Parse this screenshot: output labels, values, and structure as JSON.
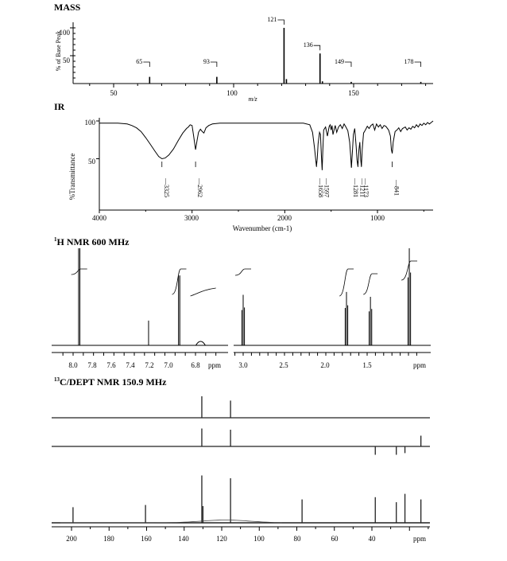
{
  "chart_data": [
    {
      "id": "mass",
      "type": "bar",
      "title": "MASS",
      "xlabel": "m/z",
      "ylabel": "% of Base Peak",
      "xlim": [
        40,
        183
      ],
      "ylim": [
        0,
        100
      ],
      "x_ticks": [
        "50",
        "100",
        "150"
      ],
      "y_ticks": [
        "50",
        "100"
      ],
      "peaks": [
        {
          "mz": 65,
          "intensity": 12,
          "label": "65"
        },
        {
          "mz": 93,
          "intensity": 12,
          "label": "93"
        },
        {
          "mz": 121,
          "intensity": 100,
          "label": "121"
        },
        {
          "mz": 122,
          "intensity": 8,
          "label": ""
        },
        {
          "mz": 136,
          "intensity": 54,
          "label": "136"
        },
        {
          "mz": 137,
          "intensity": 4,
          "label": ""
        },
        {
          "mz": 149,
          "intensity": 3,
          "label": "149"
        },
        {
          "mz": 178,
          "intensity": 3,
          "label": "178"
        }
      ]
    },
    {
      "id": "ir",
      "type": "line",
      "title": "IR",
      "xlabel": "Wavenumber (cm-1)",
      "ylabel": "%Transmittance",
      "xlim": [
        4000,
        400
      ],
      "ylim": [
        0,
        100
      ],
      "x_ticks": [
        "4000",
        "3000",
        "2000",
        "1000"
      ],
      "y_ticks": [
        "50",
        "100"
      ],
      "peak_labels": [
        "3325",
        "2962",
        "1658",
        "1597",
        "1281",
        "1211",
        "1173",
        "841"
      ],
      "series": [
        {
          "x": [
            4000,
            3800,
            3700,
            3650,
            3600,
            3550,
            3500,
            3450,
            3400,
            3360,
            3325,
            3290,
            3250,
            3200,
            3150,
            3100,
            3060,
            3040,
            3020,
            3000,
            2985,
            2962,
            2945,
            2930,
            2910,
            2890,
            2872,
            2850,
            2820,
            2780,
            2700,
            2500,
            2200,
            2000,
            1800,
            1730,
            1700,
            1680,
            1665,
            1658,
            1650,
            1640,
            1625,
            1615,
            1605,
            1597,
            1590,
            1580,
            1560,
            1540,
            1520,
            1510,
            1500,
            1490,
            1480,
            1465,
            1455,
            1440,
            1420,
            1400,
            1380,
            1360,
            1340,
            1320,
            1300,
            1290,
            1281,
            1270,
            1260,
            1245,
            1230,
            1220,
            1211,
            1200,
            1190,
            1180,
            1173,
            1165,
            1150,
            1130,
            1110,
            1090,
            1070,
            1050,
            1030,
            1010,
            990,
            970,
            950,
            930,
            910,
            880,
            860,
            850,
            841,
            830,
            810,
            790,
            770,
            750,
            730,
            700,
            680,
            660,
            640,
            620,
            600,
            580,
            560,
            540,
            520,
            500,
            480,
            460,
            440,
            420,
            400
          ],
          "y": [
            97,
            97,
            96,
            94,
            91,
            86,
            78,
            69,
            60,
            53,
            50,
            51,
            55,
            63,
            74,
            84,
            90,
            92,
            95,
            94,
            82,
            62,
            75,
            85,
            89,
            86,
            84,
            91,
            94,
            96,
            97,
            97,
            97,
            97,
            97,
            95,
            85,
            65,
            48,
            40,
            50,
            70,
            85,
            82,
            55,
            35,
            60,
            88,
            92,
            80,
            93,
            95,
            88,
            94,
            82,
            90,
            94,
            85,
            92,
            95,
            90,
            96,
            92,
            87,
            72,
            55,
            38,
            60,
            82,
            90,
            66,
            48,
            40,
            62,
            72,
            48,
            40,
            62,
            84,
            88,
            93,
            90,
            94,
            96,
            88,
            96,
            92,
            95,
            90,
            94,
            93,
            88,
            80,
            62,
            57,
            72,
            86,
            88,
            91,
            86,
            90,
            92,
            88,
            91,
            89,
            93,
            91,
            95,
            92,
            96,
            94,
            97,
            95,
            98,
            96,
            98,
            100
          ]
        }
      ]
    },
    {
      "id": "hnmr",
      "type": "line",
      "title": "H NMR 600 MHz",
      "title_superscript": "1",
      "xlabel": "ppm",
      "left_panel": {
        "xlim": [
          8.15,
          6.5
        ],
        "x_ticks": [
          "8.0",
          "7.8",
          "7.6",
          "7.4",
          "7.2",
          "7.0",
          "6.8"
        ],
        "peaks": [
          {
            "ppm": 7.94,
            "height": 1.0
          },
          {
            "ppm": 7.26,
            "height": 0.3
          },
          {
            "ppm": 6.96,
            "height": 0.72
          },
          {
            "ppm": 6.75,
            "height": 0.04
          }
        ]
      },
      "right_panel": {
        "xlim": [
          3.15,
          0.75
        ],
        "x_ticks": [
          "3.0",
          "2.5",
          "2.0",
          "1.5"
        ],
        "peaks": [
          {
            "ppm": 3.0,
            "height": 0.52
          },
          {
            "ppm": 1.75,
            "height": 0.55
          },
          {
            "ppm": 1.46,
            "height": 0.5
          },
          {
            "ppm": 0.99,
            "height": 1.0
          }
        ]
      }
    },
    {
      "id": "cnmr",
      "type": "bar",
      "title": "C/DEPT NMR 150.9 MHz",
      "title_superscript": "13",
      "xlabel": "ppm",
      "xlim": [
        206,
        88
      ],
      "x_ticks": [
        "200",
        "180",
        "160",
        "140",
        "120",
        "100",
        "80",
        "60",
        "40"
      ],
      "dept90": [
        {
          "ppm": 130.6,
          "height": 0.9
        },
        {
          "ppm": 115.3,
          "height": 0.72
        }
      ],
      "dept135": [
        {
          "ppm": 130.6,
          "height": 0.75
        },
        {
          "ppm": 115.3,
          "height": 0.7
        },
        {
          "ppm": 38.2,
          "height": -0.35
        },
        {
          "ppm": 27.0,
          "height": -0.35
        },
        {
          "ppm": 22.4,
          "height": -0.28
        },
        {
          "ppm": 13.9,
          "height": 0.45
        }
      ],
      "carbon": [
        {
          "ppm": 199.2,
          "height": 0.28
        },
        {
          "ppm": 160.6,
          "height": 0.32
        },
        {
          "ppm": 130.6,
          "height": 0.85
        },
        {
          "ppm": 130.0,
          "height": 0.3
        },
        {
          "ppm": 115.3,
          "height": 0.8
        },
        {
          "ppm": 77.2,
          "height": 0.42
        },
        {
          "ppm": 38.2,
          "height": 0.46
        },
        {
          "ppm": 27.0,
          "height": 0.37
        },
        {
          "ppm": 22.4,
          "height": 0.52
        },
        {
          "ppm": 13.9,
          "height": 0.42
        }
      ]
    }
  ]
}
